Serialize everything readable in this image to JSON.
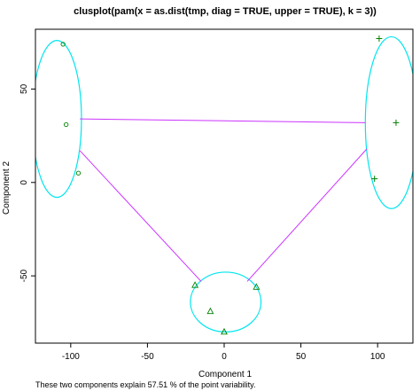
{
  "chart_data": {
    "type": "scatter",
    "title": "clusplot(pam(x = as.dist(tmp, diag = TRUE, upper = TRUE), k = 3))",
    "xlabel": "Component 1",
    "ylabel": "Component 2",
    "subtitle": "These two components explain 57.51 % of the point variability.",
    "xlim": [
      -123,
      123
    ],
    "ylim": [
      -86,
      82
    ],
    "x_ticks": [
      -100,
      -50,
      0,
      50,
      100
    ],
    "x_tick_labels": [
      "-100",
      "-50",
      "0",
      "50",
      "100"
    ],
    "y_ticks": [
      -50,
      0,
      50
    ],
    "y_tick_labels": [
      "-50",
      "0",
      "50"
    ],
    "grid": false,
    "colors": {
      "points": "#008000",
      "ellipse": "#00e5ee",
      "connector": "#cc33ff",
      "axes": "#000000"
    },
    "clusters": [
      {
        "marker": "circle",
        "points": [
          [
            -105,
            74
          ],
          [
            -103,
            31
          ],
          [
            -125,
            22
          ],
          [
            -95,
            5
          ]
        ],
        "ellipse": {
          "center": [
            -109,
            34
          ],
          "rx": 16,
          "ry": 42
        }
      },
      {
        "marker": "plus",
        "points": [
          [
            101,
            77
          ],
          [
            112,
            32
          ],
          [
            127,
            17
          ],
          [
            98,
            2
          ]
        ],
        "ellipse": {
          "center": [
            109,
            32
          ],
          "rx": 17,
          "ry": 46
        }
      },
      {
        "marker": "triangle",
        "points": [
          [
            -19,
            -55
          ],
          [
            -9,
            -69
          ],
          [
            0,
            -80
          ],
          [
            21,
            -56
          ]
        ],
        "ellipse": {
          "center": [
            1,
            -64
          ],
          "rx": 23,
          "ry": 16
        }
      }
    ],
    "connectors": [
      {
        "from": [
          -94,
          34
        ],
        "to": [
          92,
          32
        ]
      },
      {
        "from": [
          -94,
          17
        ],
        "to": [
          -15,
          -53
        ]
      },
      {
        "from": [
          93,
          18
        ],
        "to": [
          15,
          -53
        ]
      }
    ]
  }
}
